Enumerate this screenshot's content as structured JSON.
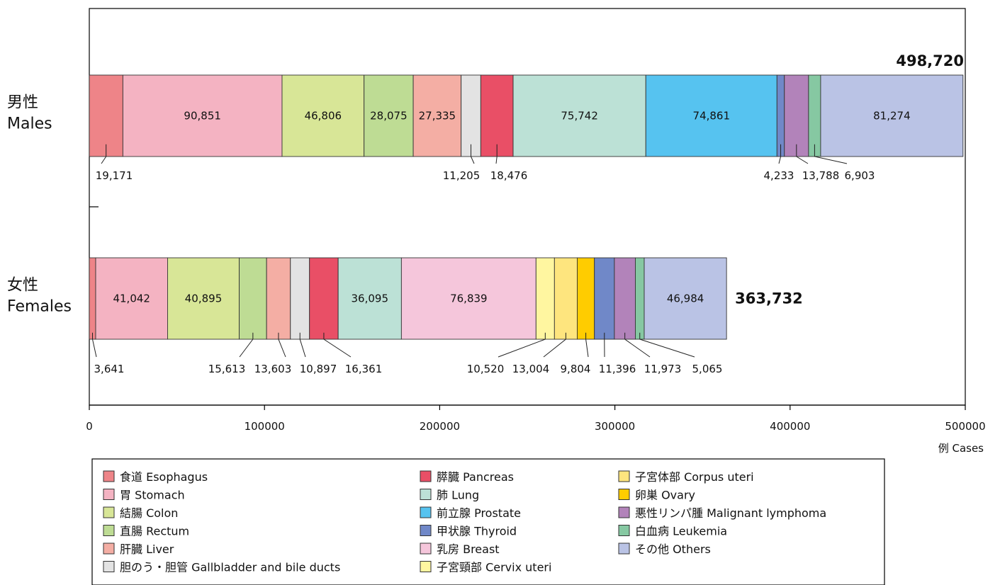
{
  "chart_data": {
    "type": "bar",
    "orientation": "horizontal",
    "stacked": true,
    "xlim": [
      0,
      500000
    ],
    "xticks": [
      0,
      100000,
      200000,
      300000,
      400000,
      500000
    ],
    "x_unit_label": "例 Cases",
    "grid": false,
    "legend_position": "bottom",
    "categories": [
      {
        "label_ja": "男性",
        "label_en": "Males",
        "total": "498,720"
      },
      {
        "label_ja": "女性",
        "label_en": "Females",
        "total": "363,732"
      }
    ],
    "sites": [
      {
        "id": "esophagus",
        "name": "食道 Esophagus",
        "color": "#EE8488"
      },
      {
        "id": "stomach",
        "name": "胃 Stomach",
        "color": "#F4B3C2"
      },
      {
        "id": "colon",
        "name": "結腸 Colon",
        "color": "#D8E697"
      },
      {
        "id": "rectum",
        "name": "直腸 Rectum",
        "color": "#BEDC94"
      },
      {
        "id": "liver",
        "name": "肝臓 Liver",
        "color": "#F4AEA4"
      },
      {
        "id": "gallbladder",
        "name": "胆のう・胆管 Gallbladder and bile ducts",
        "color": "#E3E3E3"
      },
      {
        "id": "pancreas",
        "name": "膵臓 Pancreas",
        "color": "#E94F66"
      },
      {
        "id": "lung",
        "name": "肺 Lung",
        "color": "#BCE1D6"
      },
      {
        "id": "prostate",
        "name": "前立腺 Prostate",
        "color": "#56C3F0"
      },
      {
        "id": "thyroid",
        "name": "甲状腺 Thyroid",
        "color": "#7088C8"
      },
      {
        "id": "breast",
        "name": "乳房 Breast",
        "color": "#F5C6DB"
      },
      {
        "id": "cervix",
        "name": "子宮頸部 Cervix uteri",
        "color": "#FFF6A0"
      },
      {
        "id": "corpus",
        "name": "子宮体部 Corpus uteri",
        "color": "#FEE57E"
      },
      {
        "id": "ovary",
        "name": "卵巣 Ovary",
        "color": "#FFCC00"
      },
      {
        "id": "lymphoma",
        "name": "悪性リンパ腫 Malignant lymphoma",
        "color": "#B283BA"
      },
      {
        "id": "leukemia",
        "name": "白血病 Leukemia",
        "color": "#86C8A2"
      },
      {
        "id": "others",
        "name": "その他 Others",
        "color": "#BAC3E5"
      }
    ],
    "series": [
      {
        "category": "男性 Males",
        "segments": [
          {
            "site": "esophagus",
            "value": 19171,
            "label": "19,171",
            "placement": "below"
          },
          {
            "site": "stomach",
            "value": 90851,
            "label": "90,851",
            "placement": "inside"
          },
          {
            "site": "colon",
            "value": 46806,
            "label": "46,806",
            "placement": "inside"
          },
          {
            "site": "rectum",
            "value": 28075,
            "label": "28,075",
            "placement": "inside"
          },
          {
            "site": "liver",
            "value": 27335,
            "label": "27,335",
            "placement": "inside"
          },
          {
            "site": "gallbladder",
            "value": 11205,
            "label": "11,205",
            "placement": "below"
          },
          {
            "site": "pancreas",
            "value": 18476,
            "label": "18,476",
            "placement": "below"
          },
          {
            "site": "lung",
            "value": 75742,
            "label": "75,742",
            "placement": "inside"
          },
          {
            "site": "prostate",
            "value": 74861,
            "label": "74,861",
            "placement": "inside"
          },
          {
            "site": "thyroid",
            "value": 4233,
            "label": "4,233",
            "placement": "below"
          },
          {
            "site": "lymphoma",
            "value": 13788,
            "label": "13,788",
            "placement": "below"
          },
          {
            "site": "leukemia",
            "value": 6903,
            "label": "6,903",
            "placement": "below"
          },
          {
            "site": "others",
            "value": 81274,
            "label": "81,274",
            "placement": "inside"
          }
        ]
      },
      {
        "category": "女性 Females",
        "segments": [
          {
            "site": "esophagus",
            "value": 3641,
            "label": "3,641",
            "placement": "below"
          },
          {
            "site": "stomach",
            "value": 41042,
            "label": "41,042",
            "placement": "inside"
          },
          {
            "site": "colon",
            "value": 40895,
            "label": "40,895",
            "placement": "inside"
          },
          {
            "site": "rectum",
            "value": 15613,
            "label": "15,613",
            "placement": "below"
          },
          {
            "site": "liver",
            "value": 13603,
            "label": "13,603",
            "placement": "below"
          },
          {
            "site": "gallbladder",
            "value": 10897,
            "label": "10,897",
            "placement": "below"
          },
          {
            "site": "pancreas",
            "value": 16361,
            "label": "16,361",
            "placement": "below"
          },
          {
            "site": "lung",
            "value": 36095,
            "label": "36,095",
            "placement": "inside"
          },
          {
            "site": "breast",
            "value": 76839,
            "label": "76,839",
            "placement": "inside"
          },
          {
            "site": "cervix",
            "value": 10520,
            "label": "10,520",
            "placement": "below"
          },
          {
            "site": "corpus",
            "value": 13004,
            "label": "13,004",
            "placement": "below"
          },
          {
            "site": "ovary",
            "value": 9804,
            "label": "9,804",
            "placement": "below"
          },
          {
            "site": "thyroid",
            "value": 11396,
            "label": "11,396",
            "placement": "below"
          },
          {
            "site": "lymphoma",
            "value": 11973,
            "label": "11,973",
            "placement": "below"
          },
          {
            "site": "leukemia",
            "value": 5065,
            "label": "5,065",
            "placement": "below"
          },
          {
            "site": "others",
            "value": 46984,
            "label": "46,984",
            "placement": "inside"
          }
        ]
      }
    ],
    "legend_columns": [
      [
        "esophagus",
        "stomach",
        "colon",
        "rectum",
        "liver",
        "gallbladder"
      ],
      [
        "pancreas",
        "lung",
        "prostate",
        "thyroid",
        "breast",
        "cervix"
      ],
      [
        "corpus",
        "ovary",
        "lymphoma",
        "leukemia",
        "others"
      ]
    ]
  }
}
